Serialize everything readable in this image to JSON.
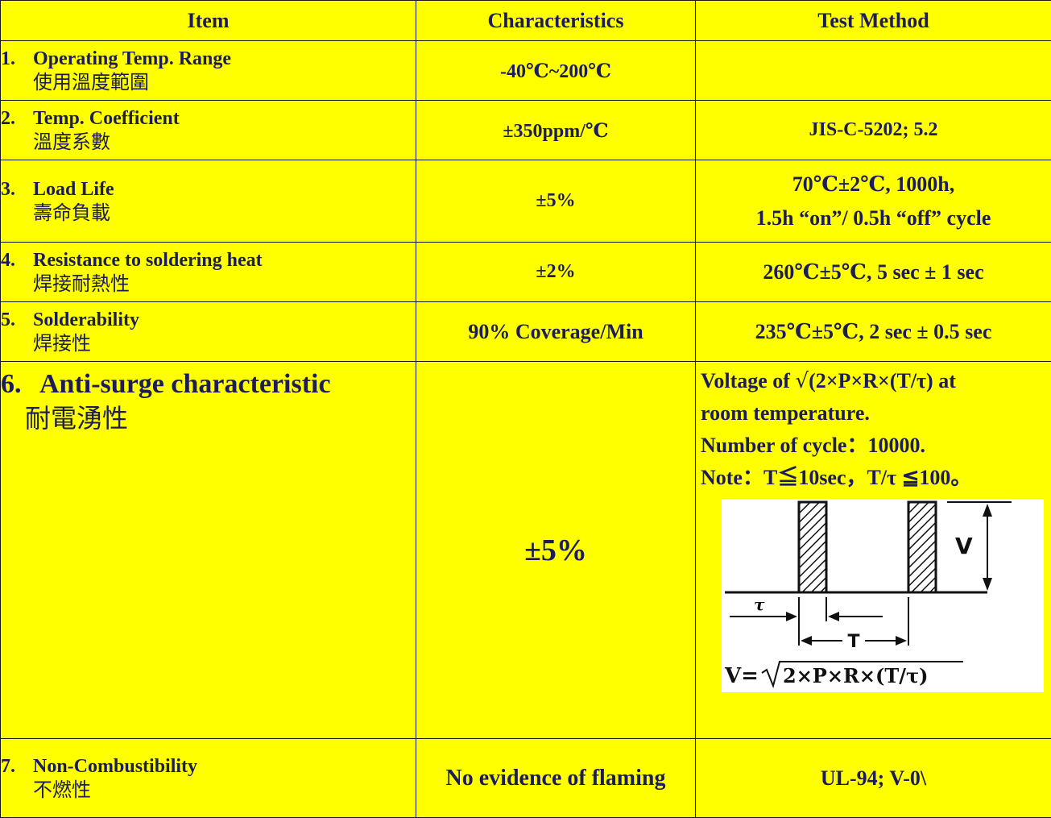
{
  "header": {
    "item": "Item",
    "characteristics": "Characteristics",
    "test_method": "Test Method"
  },
  "rows": [
    {
      "num": "1.",
      "name": "Operating Temp. Range",
      "name_zh": "使用溫度範圍",
      "characteristic": "-40℃~200℃",
      "test_method": ""
    },
    {
      "num": "2.",
      "name": "Temp. Coefficient",
      "name_zh": "溫度系數",
      "characteristic": "±350ppm/℃",
      "test_method": "JIS-C-5202; 5.2"
    },
    {
      "num": "3.",
      "name": "Load Life",
      "name_zh": "壽命負載",
      "characteristic": "±5%",
      "test_method_line1": "70℃±2℃, 1000h,",
      "test_method_line2": "1.5h “on”/ 0.5h “off” cycle"
    },
    {
      "num": "4.",
      "name": "Resistance to soldering heat",
      "name_zh": "焊接耐熱性",
      "characteristic": "±2%",
      "test_method": "260℃±5℃, 5 sec ± 1 sec"
    },
    {
      "num": "5.",
      "name": "Solderability",
      "name_zh": "焊接性",
      "characteristic": "90% Coverage/Min",
      "test_method": "235℃±5℃, 2 sec ± 0.5 sec"
    },
    {
      "num": "6.",
      "name": "Anti-surge characteristic",
      "name_zh": "耐電湧性",
      "characteristic": "±5%",
      "test_line1_pre": "Voltage of",
      "test_line1_sqrt": "√",
      "test_line1_post": "(2×P×R×(T/τ) at",
      "test_line2": "room temperature.",
      "test_line3": "Number of cycle：10000.",
      "test_line4": "Note：T≦10sec，T/τ ≦100。",
      "diagram": {
        "v_label": "V",
        "tau_label": "τ",
        "t_label": "T",
        "formula_pre": "V=",
        "formula_radicand": "2×P×R×(T/τ)"
      }
    },
    {
      "num": "7.",
      "name": "Non-Combustibility",
      "name_zh": "不燃性",
      "characteristic": "No evidence of flaming",
      "test_method": "UL-94; V-0\\"
    }
  ]
}
